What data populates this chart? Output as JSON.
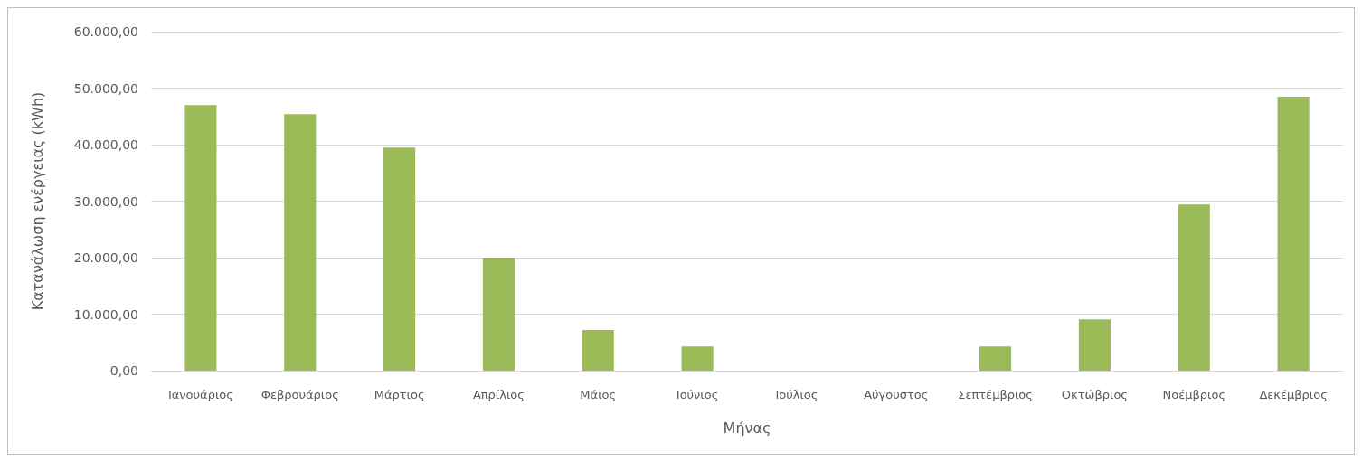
{
  "chart_data": {
    "type": "bar",
    "xlabel": "Μήνας",
    "ylabel": "Κατανάλωση ενέργειας (kWh)",
    "categories": [
      "Ιανουάριος",
      "Φεβρουάριος",
      "Μάρτιος",
      "Απρίλιος",
      "Μάιος",
      "Ιούνιος",
      "Ιούλιος",
      "Αύγουστος",
      "Σεπτέμβριος",
      "Οκτώβριος",
      "Νοέμβριος",
      "Δεκέμβριος"
    ],
    "values": [
      47000,
      45400,
      39500,
      20000,
      7200,
      4300,
      0,
      0,
      4300,
      9100,
      29400,
      48500
    ],
    "color": "#9bbb59",
    "ylim": [
      0,
      60000
    ],
    "yticks": [
      {
        "value": 0,
        "label": "0,00"
      },
      {
        "value": 10000,
        "label": "10.000,00"
      },
      {
        "value": 20000,
        "label": "20.000,00"
      },
      {
        "value": 30000,
        "label": "30.000,00"
      },
      {
        "value": 40000,
        "label": "40.000,00"
      },
      {
        "value": 50000,
        "label": "50.000,00"
      },
      {
        "value": 60000,
        "label": "60.000,00"
      }
    ],
    "grid": "y"
  }
}
